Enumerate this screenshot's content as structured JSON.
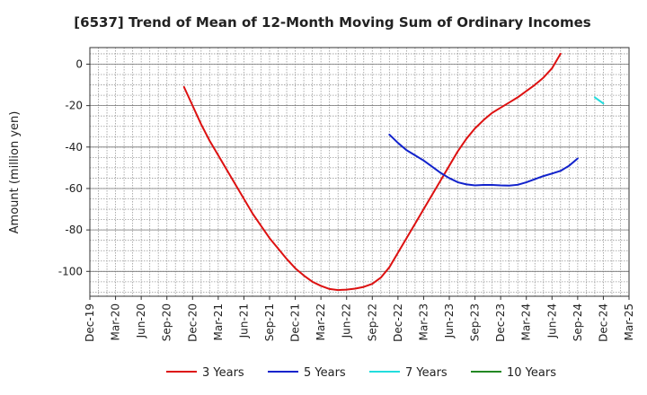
{
  "chart_data": {
    "type": "line",
    "title": "[6537]  Trend of Mean of 12-Month Moving Sum of Ordinary Incomes",
    "ylabel": "Amount (million yen)",
    "xlabel": "",
    "ylim": [
      -112,
      8
    ],
    "yticks": [
      0,
      -20,
      -40,
      -60,
      -80,
      -100
    ],
    "x_tick_labels": [
      "Dec-19",
      "Mar-20",
      "Jun-20",
      "Sep-20",
      "Dec-20",
      "Mar-21",
      "Jun-21",
      "Sep-21",
      "Dec-21",
      "Mar-22",
      "Jun-22",
      "Sep-22",
      "Dec-22",
      "Mar-23",
      "Jun-23",
      "Sep-23",
      "Dec-23",
      "Mar-24",
      "Jun-24",
      "Sep-24",
      "Dec-24",
      "Mar-25"
    ],
    "grid": true,
    "legend_position": "bottom",
    "series": [
      {
        "name": "3 Years",
        "color": "#dd1111",
        "points": [
          [
            "Nov-20",
            -11
          ],
          [
            "Dec-20",
            -20
          ],
          [
            "Jan-21",
            -29
          ],
          [
            "Feb-21",
            -37
          ],
          [
            "Mar-21",
            -44
          ],
          [
            "Apr-21",
            -51
          ],
          [
            "May-21",
            -58
          ],
          [
            "Jun-21",
            -65
          ],
          [
            "Jul-21",
            -72
          ],
          [
            "Aug-21",
            -78
          ],
          [
            "Sep-21",
            -84
          ],
          [
            "Oct-21",
            -89
          ],
          [
            "Nov-21",
            -94
          ],
          [
            "Dec-21",
            -98.5
          ],
          [
            "Jan-22",
            -102
          ],
          [
            "Feb-22",
            -105
          ],
          [
            "Mar-22",
            -107
          ],
          [
            "Apr-22",
            -108.5
          ],
          [
            "May-22",
            -109
          ],
          [
            "Jun-22",
            -108.8
          ],
          [
            "Jul-22",
            -108.3
          ],
          [
            "Aug-22",
            -107.5
          ],
          [
            "Sep-22",
            -106
          ],
          [
            "Oct-22",
            -103
          ],
          [
            "Nov-22",
            -98
          ],
          [
            "Dec-22",
            -91
          ],
          [
            "Jan-23",
            -84
          ],
          [
            "Feb-23",
            -77
          ],
          [
            "Mar-23",
            -70
          ],
          [
            "Apr-23",
            -63
          ],
          [
            "May-23",
            -56
          ],
          [
            "Jun-23",
            -49
          ],
          [
            "Jul-23",
            -42
          ],
          [
            "Aug-23",
            -36
          ],
          [
            "Sep-23",
            -31
          ],
          [
            "Oct-23",
            -27
          ],
          [
            "Nov-23",
            -23.5
          ],
          [
            "Dec-23",
            -21
          ],
          [
            "Jan-24",
            -18.5
          ],
          [
            "Feb-24",
            -16
          ],
          [
            "Mar-24",
            -13
          ],
          [
            "Apr-24",
            -10
          ],
          [
            "May-24",
            -6.5
          ],
          [
            "Jun-24",
            -2
          ],
          [
            "Jul-24",
            5
          ]
        ]
      },
      {
        "name": "5 Years",
        "color": "#1122cc",
        "points": [
          [
            "Nov-22",
            -34
          ],
          [
            "Dec-22",
            -38
          ],
          [
            "Jan-23",
            -41.5
          ],
          [
            "Feb-23",
            -44
          ],
          [
            "Mar-23",
            -46.5
          ],
          [
            "Apr-23",
            -49.5
          ],
          [
            "May-23",
            -52.5
          ],
          [
            "Jun-23",
            -55
          ],
          [
            "Jul-23",
            -57
          ],
          [
            "Aug-23",
            -58
          ],
          [
            "Sep-23",
            -58.5
          ],
          [
            "Oct-23",
            -58.3
          ],
          [
            "Nov-23",
            -58.3
          ],
          [
            "Dec-23",
            -58.5
          ],
          [
            "Jan-24",
            -58.6
          ],
          [
            "Feb-24",
            -58.2
          ],
          [
            "Mar-24",
            -57
          ],
          [
            "Apr-24",
            -55.5
          ],
          [
            "May-24",
            -54
          ],
          [
            "Jun-24",
            -52.8
          ],
          [
            "Jul-24",
            -51.5
          ],
          [
            "Aug-24",
            -49
          ],
          [
            "Sep-24",
            -45.5
          ]
        ]
      },
      {
        "name": "7 Years",
        "color": "#22dddd",
        "points": [
          [
            "Nov-24",
            -16
          ],
          [
            "Dec-24",
            -19
          ]
        ]
      },
      {
        "name": "10 Years",
        "color": "#228822",
        "points": []
      }
    ]
  }
}
